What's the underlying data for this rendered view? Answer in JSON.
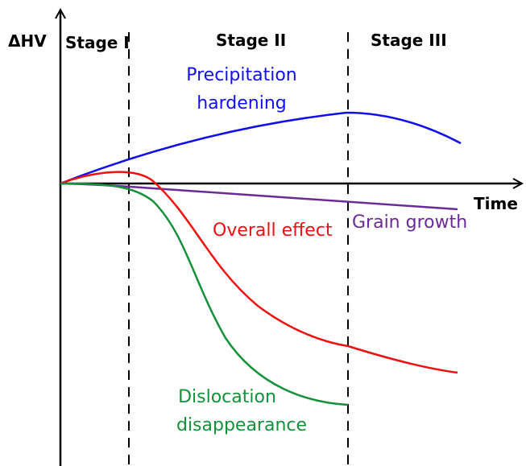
{
  "axes": {
    "y_label": "ΔHV",
    "x_label": "Time"
  },
  "stages": [
    "Stage I",
    "Stage II",
    "Stage III"
  ],
  "curves": {
    "precipitation": [
      "Precipitation",
      "hardening"
    ],
    "overall": "Overall effect",
    "grain": "Grain growth",
    "dislocation": [
      "Dislocation",
      "disappearance"
    ]
  }
}
